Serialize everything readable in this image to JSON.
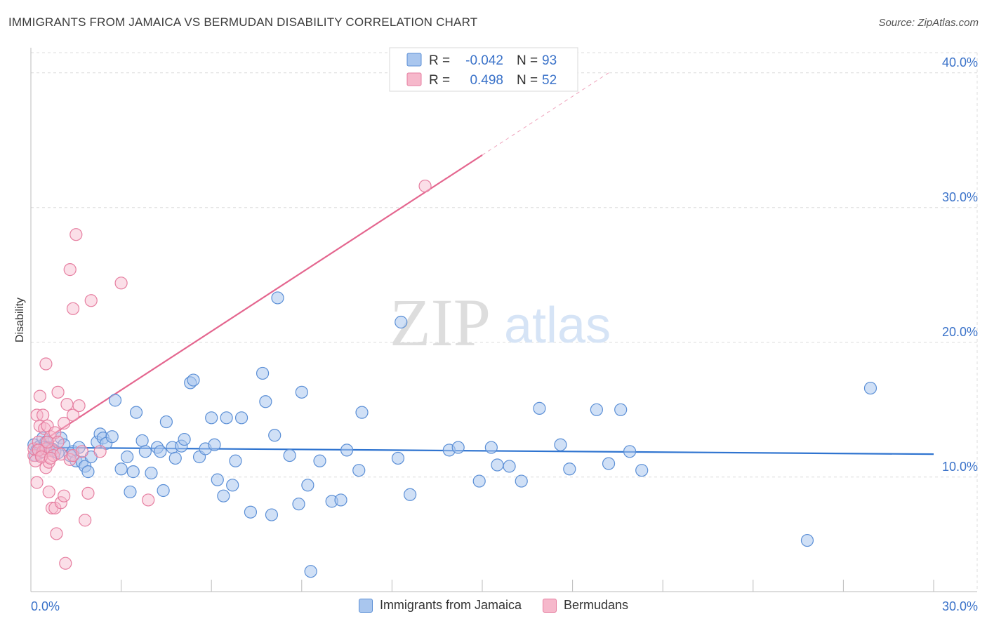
{
  "title": "IMMIGRANTS FROM JAMAICA VS BERMUDAN DISABILITY CORRELATION CHART",
  "source": "Source: ZipAtlas.com",
  "watermark": {
    "zip": "ZIP",
    "atlas": "atlas"
  },
  "colors": {
    "blue_fill": "#a9c6ee",
    "blue_stroke": "#5b8fd6",
    "blue_line": "#2f74d0",
    "pink_fill": "#f6b8cb",
    "pink_stroke": "#e67ea0",
    "pink_line": "#e4668f",
    "grid": "#dcdcdc",
    "axis_text": "#3a72c9"
  },
  "legend_top": {
    "rows": [
      {
        "r_label": "R =",
        "r_value": "-0.042",
        "n_label": "N =",
        "n_value": "93"
      },
      {
        "r_label": "R =",
        "r_value": "0.498",
        "n_label": "N =",
        "n_value": "52"
      }
    ]
  },
  "legend_bottom": [
    {
      "label": "Immigrants from Jamaica"
    },
    {
      "label": "Bermudans"
    }
  ],
  "chart_data": {
    "type": "scatter",
    "title": "IMMIGRANTS FROM JAMAICA VS BERMUDAN DISABILITY CORRELATION CHART",
    "xlabel": "",
    "ylabel": "Disability",
    "xlim": [
      0,
      30
    ],
    "ylim": [
      1.5,
      41.5
    ],
    "x_tick_labels": [
      {
        "value": 0,
        "label": "0.0%"
      },
      {
        "value": 30,
        "label": "30.0%"
      }
    ],
    "y_tick_labels": [
      {
        "value": 10,
        "label": "10.0%"
      },
      {
        "value": 20,
        "label": "20.0%"
      },
      {
        "value": 30,
        "label": "30.0%"
      },
      {
        "value": 40,
        "label": "40.0%"
      }
    ],
    "grid": true,
    "series": [
      {
        "name": "Immigrants from Jamaica",
        "R": -0.042,
        "N": 93,
        "trend": {
          "x0": 0,
          "y0": 12.2,
          "x1": 30,
          "y1": 11.7
        },
        "points": [
          [
            0.1,
            12.4
          ],
          [
            0.2,
            12.0
          ],
          [
            0.3,
            11.8
          ],
          [
            0.3,
            12.3
          ],
          [
            0.4,
            12.9
          ],
          [
            0.5,
            12.6
          ],
          [
            0.6,
            12.2
          ],
          [
            0.7,
            12.1
          ],
          [
            0.8,
            11.9
          ],
          [
            1.0,
            12.9
          ],
          [
            1.1,
            12.4
          ],
          [
            1.3,
            11.6
          ],
          [
            1.4,
            11.9
          ],
          [
            1.5,
            11.2
          ],
          [
            1.6,
            12.2
          ],
          [
            1.7,
            11.1
          ],
          [
            1.8,
            10.8
          ],
          [
            1.9,
            10.4
          ],
          [
            2.0,
            11.5
          ],
          [
            2.2,
            12.6
          ],
          [
            2.3,
            13.2
          ],
          [
            2.4,
            12.9
          ],
          [
            2.5,
            12.5
          ],
          [
            2.7,
            13.0
          ],
          [
            2.8,
            15.7
          ],
          [
            3.0,
            10.6
          ],
          [
            3.2,
            11.5
          ],
          [
            3.3,
            8.9
          ],
          [
            3.4,
            10.4
          ],
          [
            3.5,
            14.8
          ],
          [
            3.7,
            12.7
          ],
          [
            3.8,
            11.9
          ],
          [
            4.0,
            10.3
          ],
          [
            4.2,
            12.2
          ],
          [
            4.3,
            11.9
          ],
          [
            4.4,
            9.0
          ],
          [
            4.5,
            14.1
          ],
          [
            4.7,
            12.2
          ],
          [
            4.8,
            11.4
          ],
          [
            5.0,
            12.3
          ],
          [
            5.1,
            12.8
          ],
          [
            5.3,
            17.0
          ],
          [
            5.4,
            17.2
          ],
          [
            5.6,
            11.5
          ],
          [
            5.8,
            12.1
          ],
          [
            6.0,
            14.4
          ],
          [
            6.1,
            12.4
          ],
          [
            6.2,
            9.8
          ],
          [
            6.4,
            8.6
          ],
          [
            6.5,
            14.4
          ],
          [
            6.7,
            9.4
          ],
          [
            6.8,
            11.2
          ],
          [
            7.0,
            14.4
          ],
          [
            7.3,
            7.4
          ],
          [
            7.7,
            17.7
          ],
          [
            7.8,
            15.6
          ],
          [
            8.0,
            7.2
          ],
          [
            8.1,
            13.1
          ],
          [
            8.2,
            23.3
          ],
          [
            8.6,
            11.6
          ],
          [
            8.9,
            8.0
          ],
          [
            9.0,
            16.3
          ],
          [
            9.2,
            9.4
          ],
          [
            9.3,
            3.0
          ],
          [
            9.6,
            11.2
          ],
          [
            10.0,
            8.2
          ],
          [
            10.3,
            8.3
          ],
          [
            10.5,
            12.0
          ],
          [
            10.9,
            10.5
          ],
          [
            11.0,
            14.8
          ],
          [
            12.2,
            11.4
          ],
          [
            12.6,
            8.7
          ],
          [
            12.3,
            21.5
          ],
          [
            13.9,
            12.0
          ],
          [
            14.2,
            12.2
          ],
          [
            14.9,
            9.7
          ],
          [
            15.3,
            12.2
          ],
          [
            15.5,
            10.9
          ],
          [
            15.9,
            10.8
          ],
          [
            16.3,
            9.7
          ],
          [
            16.9,
            15.1
          ],
          [
            17.6,
            12.4
          ],
          [
            17.9,
            10.6
          ],
          [
            18.8,
            15.0
          ],
          [
            19.2,
            11.0
          ],
          [
            19.6,
            15.0
          ],
          [
            19.9,
            11.9
          ],
          [
            20.3,
            10.5
          ],
          [
            25.8,
            5.3
          ],
          [
            27.9,
            16.6
          ],
          [
            0.15,
            11.6
          ],
          [
            0.45,
            12.2
          ],
          [
            0.9,
            11.8
          ]
        ]
      },
      {
        "name": "Bermudans",
        "R": 0.498,
        "N": 52,
        "trend": {
          "x0": 0,
          "y0": 12.1,
          "x1": 15.0,
          "y1": 33.9
        },
        "trend_extension": {
          "x0": 15.0,
          "y0": 33.9,
          "x1": 19.2,
          "y1": 40.0
        },
        "points": [
          [
            0.1,
            11.6
          ],
          [
            0.1,
            12.1
          ],
          [
            0.15,
            11.2
          ],
          [
            0.2,
            14.6
          ],
          [
            0.2,
            9.6
          ],
          [
            0.25,
            12.6
          ],
          [
            0.3,
            13.8
          ],
          [
            0.3,
            16.0
          ],
          [
            0.35,
            11.6
          ],
          [
            0.4,
            11.9
          ],
          [
            0.4,
            14.6
          ],
          [
            0.45,
            13.6
          ],
          [
            0.5,
            12.1
          ],
          [
            0.5,
            10.7
          ],
          [
            0.5,
            18.4
          ],
          [
            0.55,
            13.8
          ],
          [
            0.6,
            8.9
          ],
          [
            0.6,
            11.1
          ],
          [
            0.65,
            13.0
          ],
          [
            0.7,
            12.0
          ],
          [
            0.7,
            7.7
          ],
          [
            0.75,
            11.6
          ],
          [
            0.8,
            13.3
          ],
          [
            0.8,
            7.7
          ],
          [
            0.85,
            5.8
          ],
          [
            0.9,
            12.6
          ],
          [
            0.9,
            16.3
          ],
          [
            1.0,
            11.7
          ],
          [
            1.0,
            8.1
          ],
          [
            1.1,
            8.6
          ],
          [
            1.1,
            14.0
          ],
          [
            1.15,
            3.6
          ],
          [
            1.2,
            15.4
          ],
          [
            1.3,
            25.4
          ],
          [
            1.3,
            11.3
          ],
          [
            1.4,
            22.5
          ],
          [
            1.4,
            11.6
          ],
          [
            1.4,
            14.6
          ],
          [
            1.5,
            28.0
          ],
          [
            1.6,
            15.3
          ],
          [
            1.7,
            11.9
          ],
          [
            1.8,
            6.8
          ],
          [
            1.9,
            8.8
          ],
          [
            2.0,
            23.1
          ],
          [
            2.3,
            11.9
          ],
          [
            3.0,
            24.4
          ],
          [
            3.9,
            8.3
          ],
          [
            13.1,
            31.6
          ],
          [
            0.25,
            12.0
          ],
          [
            0.35,
            11.5
          ],
          [
            0.55,
            12.6
          ],
          [
            0.65,
            11.4
          ]
        ]
      }
    ]
  }
}
